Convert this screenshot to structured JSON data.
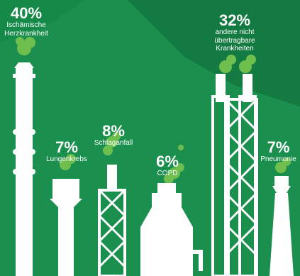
{
  "colors": {
    "background": "#1a8f4e",
    "background_dark": "#137a41",
    "smoke": "#6fbf4e",
    "chimney": "#ffffff"
  },
  "items": [
    {
      "percent": "40%",
      "label_line1": "Ischämische",
      "label_line2": "Herzkrankheit",
      "value": 40
    },
    {
      "percent": "7%",
      "label_line1": "Lungenkrebs",
      "value": 7
    },
    {
      "percent": "8%",
      "label_line1": "Schlaganfall",
      "value": 8
    },
    {
      "percent": "6%",
      "label_line1": "COPD",
      "value": 6
    },
    {
      "percent": "32%",
      "label_line1": "andere nicht",
      "label_line2": "übertragbare",
      "label_line3": "Krankheiten",
      "value": 32
    },
    {
      "percent": "7%",
      "label_line1": "Pneumonie",
      "value": 7
    }
  ]
}
